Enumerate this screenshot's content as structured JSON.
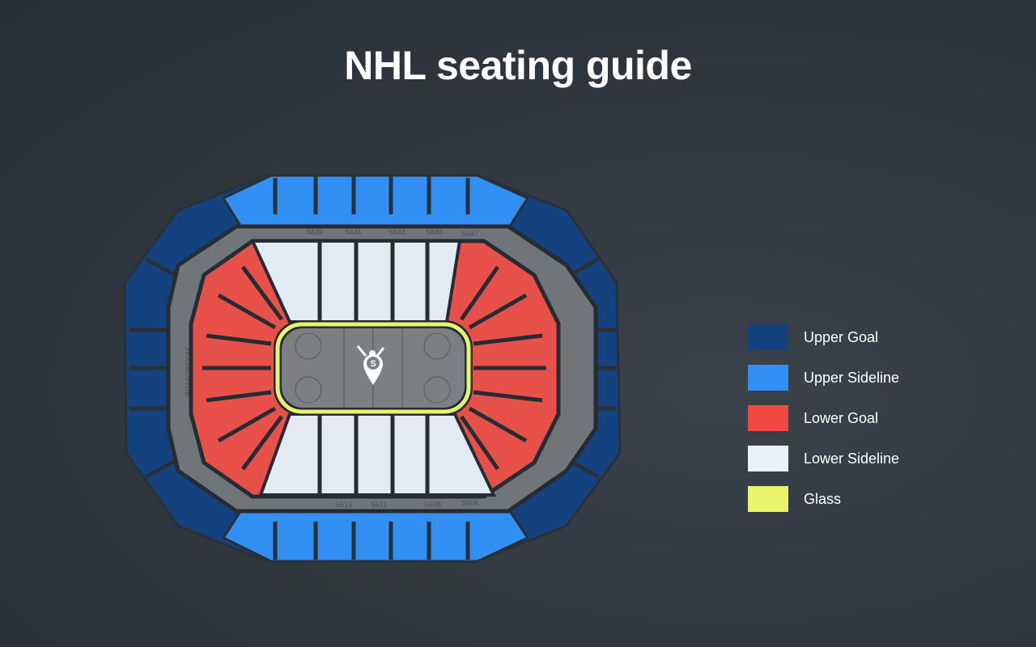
{
  "title": "NHL seating guide",
  "legend": [
    {
      "label": "Upper Goal",
      "color": "#14427e"
    },
    {
      "label": "Upper Sideline",
      "color": "#3290f5"
    },
    {
      "label": "Lower Goal",
      "color": "#f04a40"
    },
    {
      "label": "Lower Sideline",
      "color": "#e8f2fb"
    },
    {
      "label": "Glass",
      "color": "#e8f56a"
    }
  ],
  "map": {
    "suites_top": [
      "S639",
      "S641",
      "S643",
      "S645",
      "S647"
    ],
    "suites_bottom": [
      "S613",
      "S611",
      "S608",
      "S606"
    ],
    "boardroom_label": "BOARDROOM",
    "logo_letter": "S",
    "logo_icon": "fan-cheering-pin-icon"
  }
}
